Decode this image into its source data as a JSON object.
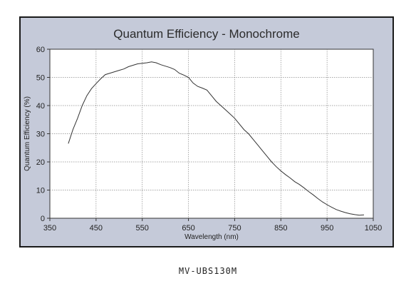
{
  "caption": "MV-UBS130M",
  "chart_data": {
    "type": "line",
    "title": "Quantum Efficiency - Monochrome",
    "xlabel": "Wavelength (nm)",
    "ylabel": "Quantum Efficiency (%)",
    "xlim": [
      350,
      1050
    ],
    "ylim": [
      0,
      60
    ],
    "xticks": [
      350,
      450,
      550,
      650,
      750,
      850,
      950,
      1050
    ],
    "yticks": [
      0,
      10,
      20,
      30,
      40,
      50,
      60
    ],
    "grid": true,
    "colors": {
      "panel": "#c5cad9",
      "plot": "#ffffff",
      "line": "#333333",
      "frame": "#1a1a1a"
    },
    "series": [
      {
        "x": [
          390,
          400,
          410,
          420,
          430,
          440,
          450,
          460,
          470,
          480,
          490,
          500,
          510,
          520,
          530,
          540,
          550,
          560,
          570,
          580,
          590,
          600,
          610,
          620,
          630,
          640,
          650,
          660,
          670,
          680,
          690,
          700,
          710,
          720,
          730,
          740,
          750,
          760,
          770,
          780,
          790,
          800,
          810,
          820,
          830,
          840,
          850,
          860,
          870,
          880,
          890,
          900,
          910,
          920,
          930,
          940,
          950,
          960,
          970,
          980,
          990,
          1000,
          1010,
          1020,
          1030
        ],
        "y": [
          26.5,
          31.5,
          35.5,
          40,
          43.5,
          46,
          47.8,
          49.5,
          51,
          51.5,
          52,
          52.5,
          53,
          53.8,
          54.3,
          54.8,
          55,
          55.2,
          55.5,
          55.2,
          54.5,
          54,
          53.5,
          52.8,
          51.5,
          50.8,
          50,
          48,
          46.8,
          46.2,
          45.5,
          43.5,
          41.5,
          40,
          38.5,
          37,
          35.5,
          33.5,
          31.5,
          30,
          28,
          26,
          24,
          22,
          20,
          18.3,
          16.8,
          15.5,
          14.3,
          13,
          12,
          10.8,
          9.5,
          8.3,
          7,
          5.8,
          4.8,
          3.9,
          3.1,
          2.5,
          2,
          1.6,
          1.3,
          1.1,
          1.2
        ]
      }
    ]
  }
}
